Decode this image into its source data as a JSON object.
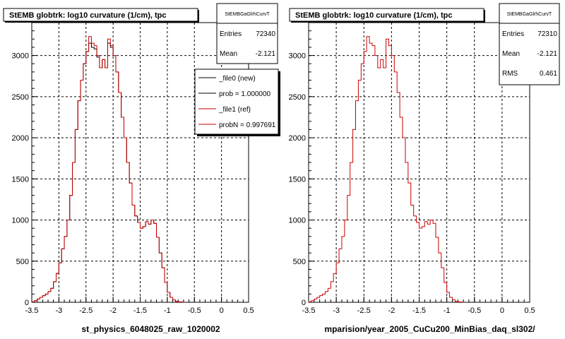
{
  "colors": {
    "new_line": "#000000",
    "ref_line": "#cc0000",
    "grid": "#000000",
    "background": "#ffffff"
  },
  "footer_text": "",
  "chart_data": [
    {
      "type": "step",
      "title": "StEMB globtrk: log10 curvature (1/cm), tpc",
      "xlabel": "st_physics_6048025_raw_1020002",
      "xlim": [
        -3.5,
        0.5
      ],
      "ylim": [
        0,
        3400
      ],
      "xticks": [
        -3.5,
        -3,
        -2.5,
        -2,
        -1.5,
        -1,
        -0.5,
        0,
        0.5
      ],
      "xtick_labels": [
        "-3.5",
        "-3",
        "-2.5",
        "-2",
        "-1.5",
        "-1",
        "-0.5",
        "0",
        "0.5"
      ],
      "yticks": [
        0,
        500,
        1000,
        1500,
        2000,
        2500,
        3000
      ],
      "ytick_labels": [
        "0",
        "500",
        "1000",
        "1500",
        "2000",
        "2500",
        "3000"
      ],
      "grid": true,
      "bin_width": 0.05,
      "x_start": -3.5,
      "series": [
        {
          "name": "_file0 (new)",
          "color": "#000000",
          "values": [
            5,
            20,
            40,
            60,
            80,
            100,
            130,
            170,
            250,
            350,
            480,
            650,
            800,
            1000,
            1300,
            1700,
            2100,
            2450,
            2700,
            2900,
            3050,
            3150,
            3100,
            3080,
            2980,
            2850,
            2950,
            2850,
            3150,
            3100,
            3000,
            2800,
            2550,
            2250,
            2000,
            1700,
            1450,
            1180,
            1050,
            970,
            900,
            920,
            980,
            950,
            1000,
            960,
            790,
            600,
            420,
            240,
            120,
            60,
            30,
            10,
            5,
            3
          ]
        },
        {
          "name": "_file1 (ref)",
          "color": "#cc0000",
          "values": [
            5,
            20,
            40,
            60,
            80,
            100,
            130,
            170,
            250,
            350,
            480,
            650,
            800,
            1000,
            1300,
            1700,
            2100,
            2450,
            2700,
            2900,
            3050,
            3230,
            3150,
            3120,
            3000,
            2850,
            2950,
            2850,
            3200,
            3120,
            3000,
            2800,
            2550,
            2250,
            2000,
            1700,
            1450,
            1180,
            1050,
            970,
            900,
            920,
            980,
            950,
            1000,
            960,
            790,
            600,
            420,
            240,
            120,
            60,
            30,
            10,
            5,
            3
          ]
        }
      ],
      "stats_box": {
        "header": "StEMBGaGlrhCurvT",
        "rows": [
          {
            "label": "Entries",
            "value": "72340"
          },
          {
            "label": "Mean",
            "value": "-2.121"
          }
        ]
      },
      "legend": {
        "placement": "top-right",
        "entries": [
          {
            "label": "_file0 (new)",
            "color": "#000000"
          },
          {
            "label": "prob = 1.000000",
            "color": "#000000"
          },
          {
            "label": "_file1 (ref)",
            "color": "#cc0000"
          },
          {
            "label": "probN = 0.997691",
            "color": "#cc0000"
          }
        ]
      }
    },
    {
      "type": "step",
      "title": "StEMB globtrk: log10 curvature (1/cm), tpc",
      "xlabel": "mparision/year_2005_CuCu200_MinBias_daq_sl302/",
      "xlim": [
        -3.5,
        0.5
      ],
      "ylim": [
        0,
        3400
      ],
      "xticks": [
        -3.5,
        -3,
        -2.5,
        -2,
        -1.5,
        -1,
        -0.5,
        0,
        0.5
      ],
      "xtick_labels": [
        "-3.5",
        "-3",
        "-2.5",
        "-2",
        "-1.5",
        "-1",
        "-0.5",
        "0",
        "0.5"
      ],
      "yticks": [
        0,
        500,
        1000,
        1500,
        2000,
        2500,
        3000
      ],
      "ytick_labels": [
        "0",
        "500",
        "1000",
        "1500",
        "2000",
        "2500",
        "3000"
      ],
      "grid": true,
      "bin_width": 0.05,
      "x_start": -3.5,
      "series": [
        {
          "name": "ref",
          "color": "#cc0000",
          "values": [
            5,
            20,
            40,
            60,
            80,
            100,
            130,
            170,
            250,
            350,
            480,
            650,
            800,
            1000,
            1300,
            1700,
            2100,
            2450,
            2700,
            2900,
            3050,
            3230,
            3150,
            3120,
            3000,
            2850,
            2950,
            2850,
            3200,
            3120,
            3000,
            2800,
            2550,
            2250,
            2000,
            1700,
            1450,
            1180,
            1050,
            970,
            900,
            920,
            980,
            950,
            1000,
            960,
            790,
            600,
            420,
            240,
            120,
            60,
            30,
            10,
            5,
            3
          ]
        }
      ],
      "stats_box": {
        "header": "StEMBGaGlrhCurvT",
        "rows": [
          {
            "label": "Entries",
            "value": "72310"
          },
          {
            "label": "Mean",
            "value": "-2.121"
          },
          {
            "label": "RMS",
            "value": "0.461"
          }
        ]
      }
    }
  ]
}
